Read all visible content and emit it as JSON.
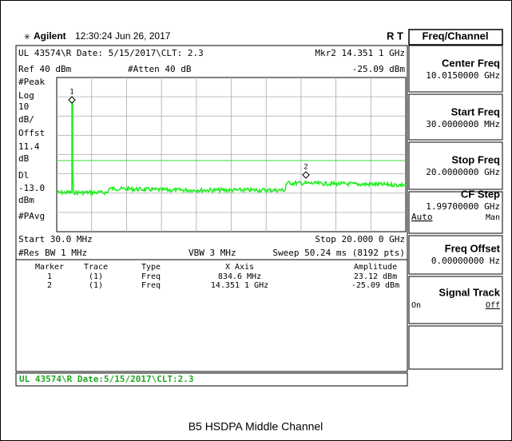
{
  "header": {
    "brand": "Agilent",
    "time": "12:30:24  Jun 26, 2017",
    "flags": "R   T"
  },
  "display": {
    "top_left": "UL 43574\\R Date: 5/15/2017\\CLT: 2.3",
    "marker_readout": "Mkr2  14.351 1 GHz",
    "ref": "Ref 40 dBm",
    "atten": "#Atten 40 dB",
    "marker_amplitude": "-25.09 dBm",
    "side_labels": [
      "#Peak",
      "Log",
      "10",
      "dB/",
      "Offst",
      "11.4",
      "dB",
      "Dl",
      "-13.0",
      "dBm",
      "#PAvg"
    ],
    "marker_labels": [
      "1",
      "2"
    ],
    "start": "Start 30.0 MHz",
    "stop": "Stop 20.000 0 GHz",
    "res_bw": "#Res BW 1 MHz",
    "vbw": "VBW 3 MHz",
    "sweep": "Sweep 50.24 ms (8192 pts)",
    "table": {
      "header": [
        "Marker",
        "Trace",
        "Type",
        "X Axis",
        "Amplitude"
      ],
      "rows": [
        [
          "1",
          "(1)",
          "Freq",
          "834.6 MHz",
          "23.12 dBm"
        ],
        [
          "2",
          "(1)",
          "Freq",
          "14.351 1 GHz",
          "-25.09 dBm"
        ]
      ]
    },
    "status": "UL 43574\\R Date:5/15/2017\\CLT:2.3"
  },
  "menu": {
    "title": "Freq/Channel",
    "keys": [
      {
        "label": "Center Freq",
        "value": "10.0150000 GHz"
      },
      {
        "label": "Start Freq",
        "value": "30.0000000 MHz"
      },
      {
        "label": "Stop Freq",
        "value": "20.0000000 GHz"
      },
      {
        "label": "CF Step",
        "value": "1.99700000 GHz",
        "left": "Auto",
        "right": "Man"
      },
      {
        "label": "Freq Offset",
        "value": "0.00000000  Hz"
      },
      {
        "label": "Signal Track",
        "left": "On",
        "right": "Off"
      }
    ]
  },
  "caption": "B5 HSDPA Middle Channel"
}
